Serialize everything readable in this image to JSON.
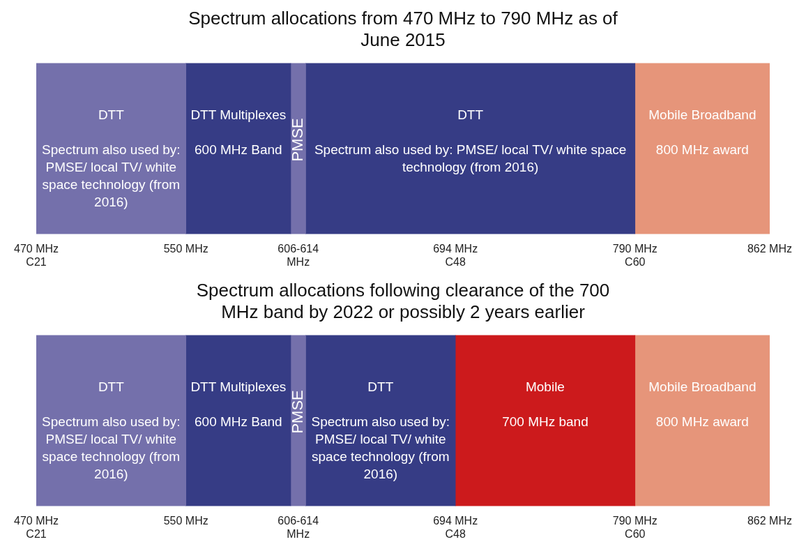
{
  "chart_data": [
    {
      "type": "bar",
      "orientation": "horizontal",
      "title": "Spectrum allocations from 470 MHz to 790 MHz as of June 2015",
      "categories": [
        null
      ],
      "xlim": [
        470,
        862
      ],
      "xticks": [
        {
          "value": 470,
          "label": "470 MHz\nC21"
        },
        {
          "value": 550,
          "label": "550 MHz"
        },
        {
          "value": 610,
          "label": "606-614\nMHz"
        },
        {
          "value": 694,
          "label": "694 MHz\nC48"
        },
        {
          "value": 790,
          "label": "790 MHz\nC60"
        },
        {
          "value": 862,
          "label": "862 MHz"
        }
      ],
      "grid": false,
      "legend": false,
      "series": [
        {
          "name": "DTT\nSpectrum also used by: PMSE/ local TV/ white space technology (from 2016)",
          "color": "#7470ab",
          "base": [
            470
          ],
          "values": [
            80
          ]
        },
        {
          "name": "DTT Multiplexes\n600 MHz Band",
          "color": "#363c85",
          "base": [
            550
          ],
          "values": [
            56
          ]
        },
        {
          "name": "PMSE",
          "color": "#7470ab",
          "base": [
            606
          ],
          "values": [
            8
          ]
        },
        {
          "name": "DTT\nSpectrum also used by: PMSE/ local TV/ white space technology (from 2016)",
          "color": "#363c85",
          "base": [
            614
          ],
          "values": [
            176
          ]
        },
        {
          "name": "Mobile Broadband\n800 MHz award",
          "color": "#e6957a",
          "base": [
            790
          ],
          "values": [
            72
          ]
        }
      ]
    },
    {
      "type": "bar",
      "orientation": "horizontal",
      "title": "Spectrum allocations following clearance of the 700 MHz band by 2022 or possibly 2 years earlier",
      "categories": [
        null
      ],
      "xlim": [
        470,
        862
      ],
      "xticks": [
        {
          "value": 470,
          "label": "470 MHz\nC21"
        },
        {
          "value": 550,
          "label": "550 MHz"
        },
        {
          "value": 610,
          "label": "606-614\nMHz"
        },
        {
          "value": 694,
          "label": "694 MHz\nC48"
        },
        {
          "value": 790,
          "label": "790 MHz\nC60"
        },
        {
          "value": 862,
          "label": "862 MHz"
        }
      ],
      "grid": false,
      "legend": false,
      "series": [
        {
          "name": "DTT\nSpectrum also used by: PMSE/ local TV/ white space technology (from 2016)",
          "color": "#7470ab",
          "base": [
            470
          ],
          "values": [
            80
          ]
        },
        {
          "name": "DTT Multiplexes\n600 MHz Band",
          "color": "#363c85",
          "base": [
            550
          ],
          "values": [
            56
          ]
        },
        {
          "name": "PMSE",
          "color": "#7470ab",
          "base": [
            606
          ],
          "values": [
            8
          ]
        },
        {
          "name": "DTT\nSpectrum also used by: PMSE/ local TV/ white space technology (from 2016)",
          "color": "#363c85",
          "base": [
            614
          ],
          "values": [
            80
          ]
        },
        {
          "name": "Mobile\n700 MHz band",
          "color": "#cc1a1c",
          "base": [
            694
          ],
          "values": [
            96
          ]
        },
        {
          "name": "Mobile Broadband\n800 MHz award",
          "color": "#e6957a",
          "base": [
            790
          ],
          "values": [
            72
          ]
        }
      ]
    }
  ]
}
